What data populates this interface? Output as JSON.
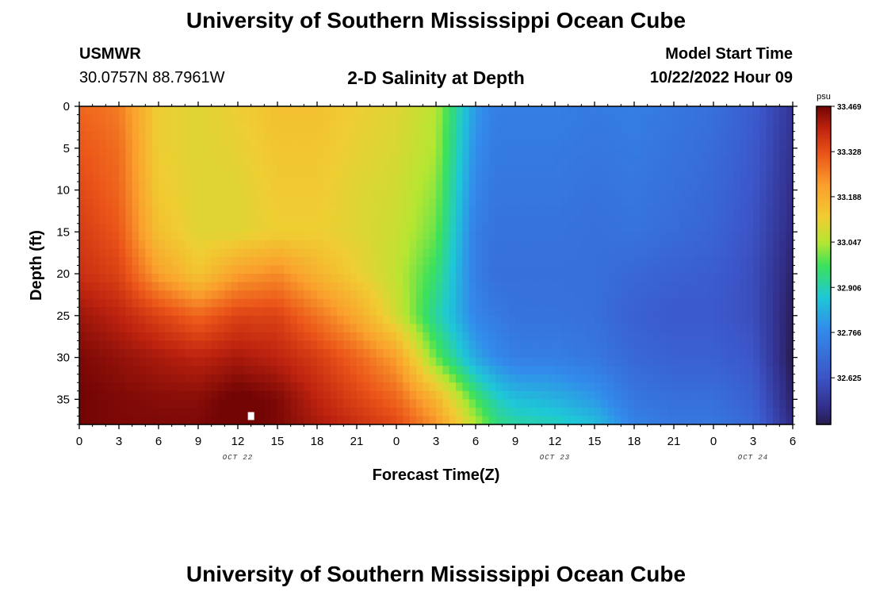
{
  "header": {
    "title": "University of Southern Mississippi Ocean Cube",
    "station": "USMWR",
    "coords": "30.0757N  88.7961W",
    "subtitle": "2-D Salinity at Depth",
    "model_start_label": "Model Start Time",
    "model_start_value": "10/22/2022 Hour 09"
  },
  "footer": {
    "title": "University of Southern Mississippi Ocean Cube"
  },
  "chart_data": {
    "type": "heatmap",
    "xlabel": "Forecast Time(Z)",
    "ylabel": "Depth (ft)",
    "x_tick_labels": [
      "0",
      "3",
      "6",
      "9",
      "12",
      "15",
      "18",
      "21",
      "0",
      "3",
      "6",
      "9",
      "12",
      "15",
      "18",
      "21",
      "0",
      "3",
      "6"
    ],
    "x_tick_hours": [
      0,
      3,
      6,
      9,
      12,
      15,
      18,
      21,
      24,
      27,
      30,
      33,
      36,
      39,
      42,
      45,
      48,
      51,
      54
    ],
    "x_range_hours": [
      0,
      54
    ],
    "date_labels": [
      {
        "text": "OCT 22",
        "hour": 12
      },
      {
        "text": "OCT 23",
        "hour": 36
      },
      {
        "text": "OCT 24",
        "hour": 51
      }
    ],
    "y_ticks": [
      0,
      5,
      10,
      15,
      20,
      25,
      30,
      35
    ],
    "y_range": [
      0,
      38
    ],
    "y_inverted": true,
    "colorbar": {
      "unit": "psu",
      "ticks": [
        33.469,
        33.328,
        33.188,
        33.047,
        32.906,
        32.766,
        32.625
      ],
      "tick_labels": [
        "33.469",
        "33.328",
        "33.188",
        "33.047",
        "32.906",
        "32.766",
        "32.625"
      ],
      "range": [
        32.48,
        33.469
      ]
    },
    "salinity_grid": {
      "hours": [
        0,
        3,
        6,
        9,
        12,
        15,
        18,
        21,
        24,
        27,
        30,
        31.5,
        33,
        36,
        39,
        42,
        45,
        48,
        51,
        54
      ],
      "depths": [
        0,
        5,
        10,
        15,
        20,
        25,
        30,
        35,
        38
      ],
      "values": [
        [
          33.3,
          33.27,
          33.12,
          33.1,
          33.12,
          33.15,
          33.15,
          33.12,
          33.1,
          33.05,
          32.8,
          32.74,
          32.74,
          32.74,
          32.73,
          32.74,
          32.72,
          32.7,
          32.65,
          32.55
        ],
        [
          33.32,
          33.29,
          33.12,
          33.1,
          33.11,
          33.14,
          33.14,
          33.11,
          33.09,
          33.04,
          32.78,
          32.73,
          32.73,
          32.73,
          32.72,
          32.73,
          32.71,
          32.69,
          32.64,
          32.54
        ],
        [
          33.34,
          33.3,
          33.13,
          33.1,
          33.1,
          33.13,
          33.13,
          33.1,
          33.08,
          33.02,
          32.76,
          32.72,
          32.72,
          32.72,
          32.71,
          32.72,
          32.7,
          32.68,
          32.63,
          32.53
        ],
        [
          33.36,
          33.32,
          33.15,
          33.1,
          33.1,
          33.12,
          33.12,
          33.1,
          33.07,
          33.0,
          32.74,
          32.71,
          32.71,
          32.71,
          32.7,
          32.71,
          32.69,
          32.67,
          32.62,
          32.52
        ],
        [
          33.38,
          33.35,
          33.22,
          33.14,
          33.22,
          33.25,
          33.18,
          33.12,
          33.06,
          32.96,
          32.74,
          32.7,
          32.7,
          32.7,
          32.7,
          32.68,
          32.66,
          32.65,
          32.61,
          32.5
        ],
        [
          33.43,
          33.4,
          33.35,
          33.3,
          33.35,
          33.35,
          33.28,
          33.2,
          33.08,
          32.92,
          32.76,
          32.73,
          32.71,
          32.71,
          32.7,
          32.66,
          32.64,
          32.64,
          32.61,
          32.49
        ],
        [
          33.46,
          33.44,
          33.42,
          33.4,
          33.42,
          33.4,
          33.36,
          33.3,
          33.22,
          33.0,
          32.82,
          32.77,
          32.74,
          32.74,
          32.72,
          32.68,
          32.66,
          32.66,
          32.63,
          32.48
        ],
        [
          33.47,
          33.46,
          33.45,
          33.45,
          33.48,
          33.46,
          33.4,
          33.35,
          33.3,
          33.18,
          32.98,
          32.9,
          32.86,
          32.84,
          32.8,
          32.72,
          32.7,
          32.7,
          32.66,
          32.5
        ],
        [
          33.47,
          33.46,
          33.46,
          33.46,
          33.48,
          33.46,
          33.42,
          33.38,
          33.34,
          33.24,
          33.05,
          32.95,
          32.92,
          32.9,
          32.86,
          32.75,
          32.72,
          32.72,
          32.68,
          32.52
        ]
      ]
    }
  }
}
